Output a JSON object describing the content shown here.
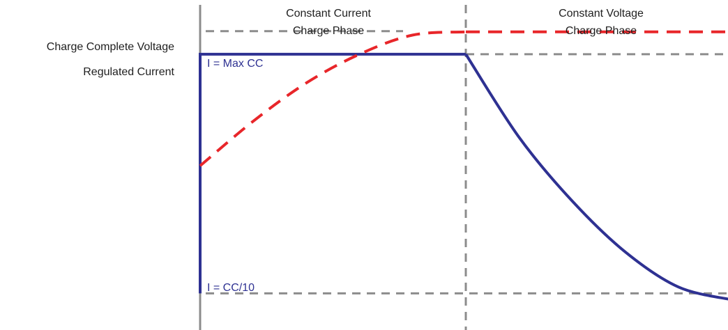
{
  "chart_data": {
    "type": "line",
    "x_units": "normalized charge time (0 = start, 1 = end of CC phase)",
    "xlim": [
      0,
      2.0
    ],
    "ylim": [
      0,
      1
    ],
    "y_levels": {
      "charge_complete_voltage": 0.9,
      "regulated_current": 0.83,
      "termination_current": 0.08
    },
    "y_level_labels": {
      "charge_complete_voltage": "Charge Complete Voltage",
      "regulated_current": "Regulated Current"
    },
    "phases": [
      {
        "label_line1": "Constant Current",
        "label_line2": "Charge Phase",
        "x_range": [
          0,
          1
        ]
      },
      {
        "label_line1": "Constant Voltage",
        "label_line2": "Charge Phase",
        "x_range": [
          1,
          2.0
        ]
      }
    ],
    "annotations": [
      {
        "text": "I = Max CC",
        "color": "#2e3192"
      },
      {
        "text": "I = CC/10",
        "color": "#2e3192"
      }
    ],
    "series": [
      {
        "style": "solid",
        "color": "#2e3192",
        "points": [
          [
            0,
            0.08
          ],
          [
            0,
            0.83
          ],
          [
            1.0,
            0.83
          ],
          [
            1.2,
            0.57
          ],
          [
            1.4,
            0.37
          ],
          [
            1.6,
            0.21
          ],
          [
            1.8,
            0.1
          ],
          [
            2.0,
            0.06
          ]
        ]
      },
      {
        "style": "dashed",
        "color": "#e8262a",
        "points": [
          [
            0,
            0.48
          ],
          [
            0.2,
            0.62
          ],
          [
            0.4,
            0.74
          ],
          [
            0.6,
            0.83
          ],
          [
            0.8,
            0.89
          ],
          [
            1.0,
            0.9
          ],
          [
            2.0,
            0.9
          ]
        ]
      }
    ],
    "colors": {
      "axis": "#8c8c8c",
      "guide": "#8c8c8c",
      "current": "#2e3192",
      "voltage": "#e8262a"
    }
  }
}
